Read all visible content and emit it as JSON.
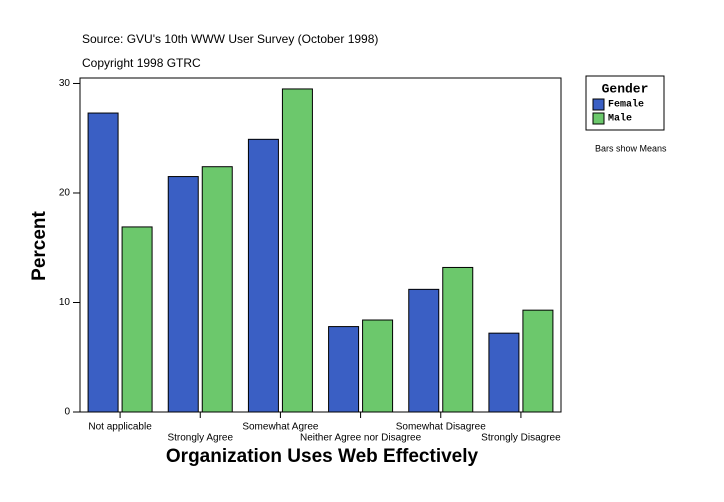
{
  "chart_data": {
    "type": "bar",
    "subtitle": "Source: GVU's 10th WWW User Survey (October 1998)",
    "copyright": "Copyright 1998 GTRC",
    "x_label": "Organization Uses Web Effectively",
    "y_label": "Percent",
    "legend_title": "Gender",
    "note": "Bars show Means",
    "categories": [
      "Not applicable",
      "Strongly Agree",
      "Somewhat Agree",
      "Neither Agree nor Disagree",
      "Somewhat Disagree",
      "Strongly Disagree"
    ],
    "series": [
      {
        "name": "Female",
        "color": "#3a5fc4",
        "values": [
          27.3,
          21.5,
          24.9,
          7.8,
          11.2,
          7.2
        ]
      },
      {
        "name": "Male",
        "color": "#6cc86c",
        "values": [
          16.9,
          22.4,
          29.5,
          8.4,
          13.2,
          9.3
        ]
      }
    ],
    "ylim": [
      0,
      30.5
    ],
    "yticks": [
      0,
      10,
      20,
      30
    ]
  }
}
